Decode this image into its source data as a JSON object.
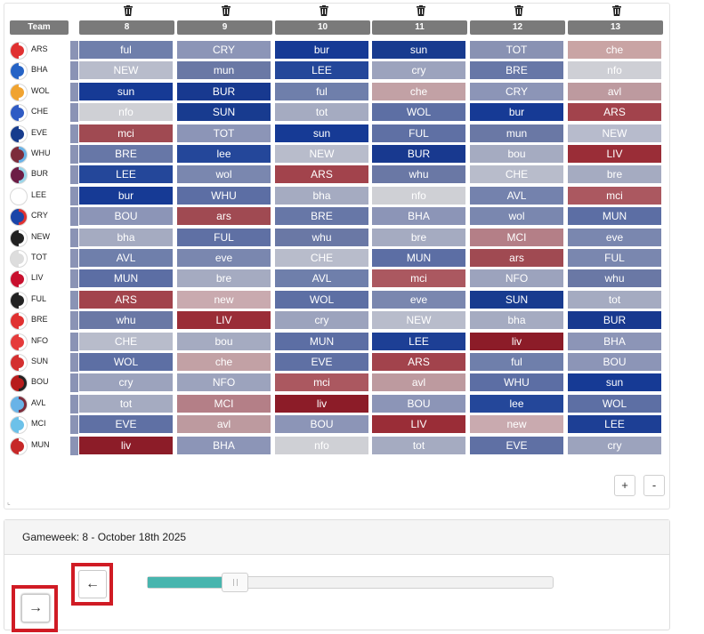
{
  "header": {
    "team_label": "Team",
    "gameweeks": [
      "8",
      "9",
      "10",
      "11",
      "12",
      "13"
    ]
  },
  "teams": [
    {
      "code": "ARS",
      "badge": [
        "#e03131",
        "#ffffff"
      ],
      "fixtures": [
        [
          "ful",
          "#6f7fab"
        ],
        [
          "CRY",
          "#8c95b7"
        ],
        [
          "bur",
          "#163a95"
        ],
        [
          "sun",
          "#183b8f"
        ],
        [
          "TOT",
          "#8992b3"
        ],
        [
          "che",
          "#c9a4a4"
        ]
      ]
    },
    {
      "code": "BHA",
      "badge": [
        "#2563c5",
        "#ffffff"
      ],
      "fixtures": [
        [
          "NEW",
          "#b8bccb"
        ],
        [
          "mun",
          "#6a78a5"
        ],
        [
          "LEE",
          "#24479a"
        ],
        [
          "cry",
          "#9ca3bd"
        ],
        [
          "BRE",
          "#6777a7"
        ],
        [
          "nfo",
          "#cecfd5"
        ]
      ]
    },
    {
      "code": "WOL",
      "badge": [
        "#f0a330",
        "#ffffff"
      ],
      "fixtures": [
        [
          "sun",
          "#163a95"
        ],
        [
          "BUR",
          "#18398f"
        ],
        [
          "ful",
          "#6f7fab"
        ],
        [
          "che",
          "#c2a1a5"
        ],
        [
          "CRY",
          "#8c95b7"
        ],
        [
          "avl",
          "#bd9a9f"
        ]
      ]
    },
    {
      "code": "CHE",
      "badge": [
        "#2f5bc4",
        "#ffffff"
      ],
      "fixtures": [
        [
          "nfo",
          "#cfd0d5"
        ],
        [
          "SUN",
          "#183b8f"
        ],
        [
          "tot",
          "#a5abc1"
        ],
        [
          "WOL",
          "#5d6fa4"
        ],
        [
          "bur",
          "#163a95"
        ],
        [
          "ARS",
          "#a2434c"
        ]
      ]
    },
    {
      "code": "EVE",
      "badge": [
        "#173c8d",
        "#ffffff"
      ],
      "fixtures": [
        [
          "mci",
          "#a04a52"
        ],
        [
          "TOT",
          "#8c95b7"
        ],
        [
          "sun",
          "#163a95"
        ],
        [
          "FUL",
          "#5f70a4"
        ],
        [
          "mun",
          "#6a78a5"
        ],
        [
          "NEW",
          "#b7bbcc"
        ]
      ]
    },
    {
      "code": "WHU",
      "badge": [
        "#7d2c3b",
        "#69b3e7"
      ],
      "fixtures": [
        [
          "BRE",
          "#6777a7"
        ],
        [
          "lee",
          "#24479a"
        ],
        [
          "NEW",
          "#b8bccb"
        ],
        [
          "BUR",
          "#18398f"
        ],
        [
          "bou",
          "#a5abc1"
        ],
        [
          "LIV",
          "#9a2d37"
        ]
      ]
    },
    {
      "code": "BUR",
      "badge": [
        "#6c1d45",
        "#99d6ea"
      ],
      "fixtures": [
        [
          "LEE",
          "#24479a"
        ],
        [
          "wol",
          "#7a87af"
        ],
        [
          "ARS",
          "#a2434c"
        ],
        [
          "whu",
          "#6a78a5"
        ],
        [
          "CHE",
          "#b8bccb"
        ],
        [
          "bre",
          "#a5abc1"
        ]
      ]
    },
    {
      "code": "LEE",
      "badge": [
        "#ffffff",
        "#ffffff"
      ],
      "fixtures": [
        [
          "bur",
          "#163a95"
        ],
        [
          "WHU",
          "#5c6ea4"
        ],
        [
          "bha",
          "#a5abc1"
        ],
        [
          "nfo",
          "#cfd0d5"
        ],
        [
          "AVL",
          "#7482ad"
        ],
        [
          "mci",
          "#ab5860"
        ]
      ]
    },
    {
      "code": "CRY",
      "badge": [
        "#1b45a8",
        "#e03131"
      ],
      "fixtures": [
        [
          "BOU",
          "#8c95b7"
        ],
        [
          "ars",
          "#a04a52"
        ],
        [
          "BRE",
          "#6777a7"
        ],
        [
          "BHA",
          "#8c95b7"
        ],
        [
          "wol",
          "#7a87af"
        ],
        [
          "MUN",
          "#5c6ea4"
        ]
      ]
    },
    {
      "code": "NEW",
      "badge": [
        "#222222",
        "#ffffff"
      ],
      "fixtures": [
        [
          "bha",
          "#a5abc1"
        ],
        [
          "FUL",
          "#5f70a4"
        ],
        [
          "whu",
          "#6a78a5"
        ],
        [
          "bre",
          "#a5abc1"
        ],
        [
          "MCI",
          "#b47f87"
        ],
        [
          "eve",
          "#7a87af"
        ]
      ]
    },
    {
      "code": "TOT",
      "badge": [
        "#dddddd",
        "#ffffff"
      ],
      "fixtures": [
        [
          "AVL",
          "#6f7fab"
        ],
        [
          "eve",
          "#7a87af"
        ],
        [
          "CHE",
          "#b8bccb"
        ],
        [
          "MUN",
          "#5c6ea4"
        ],
        [
          "ars",
          "#a04a52"
        ],
        [
          "FUL",
          "#7a87af"
        ]
      ]
    },
    {
      "code": "LIV",
      "badge": [
        "#c8102e",
        "#ffffff"
      ],
      "fixtures": [
        [
          "MUN",
          "#5c6ea4"
        ],
        [
          "bre",
          "#a5abc1"
        ],
        [
          "AVL",
          "#6f7fab"
        ],
        [
          "mci",
          "#ab5860"
        ],
        [
          "NFO",
          "#9ca3bd"
        ],
        [
          "whu",
          "#6a78a5"
        ]
      ]
    },
    {
      "code": "FUL",
      "badge": [
        "#222222",
        "#ffffff"
      ],
      "fixtures": [
        [
          "ARS",
          "#a2434c"
        ],
        [
          "new",
          "#c9aaaf"
        ],
        [
          "WOL",
          "#5d6fa4"
        ],
        [
          "eve",
          "#7a87af"
        ],
        [
          "SUN",
          "#183b8f"
        ],
        [
          "tot",
          "#a5abc1"
        ]
      ]
    },
    {
      "code": "BRE",
      "badge": [
        "#e03131",
        "#ffffff"
      ],
      "fixtures": [
        [
          "whu",
          "#6a78a5"
        ],
        [
          "LIV",
          "#9a2d37"
        ],
        [
          "cry",
          "#9ca3bd"
        ],
        [
          "NEW",
          "#b8bccb"
        ],
        [
          "bha",
          "#a5abc1"
        ],
        [
          "BUR",
          "#18398f"
        ]
      ]
    },
    {
      "code": "NFO",
      "badge": [
        "#e53b3b",
        "#ffffff"
      ],
      "fixtures": [
        [
          "CHE",
          "#b8bccb"
        ],
        [
          "bou",
          "#a5abc1"
        ],
        [
          "MUN",
          "#5c6ea4"
        ],
        [
          "LEE",
          "#1d3f95"
        ],
        [
          "liv",
          "#8c1c28"
        ],
        [
          "BHA",
          "#8c95b7"
        ]
      ]
    },
    {
      "code": "SUN",
      "badge": [
        "#d32f2f",
        "#ffffff"
      ],
      "fixtures": [
        [
          "WOL",
          "#5d6fa4"
        ],
        [
          "che",
          "#c2a1a5"
        ],
        [
          "EVE",
          "#5f70a4"
        ],
        [
          "ARS",
          "#a2434c"
        ],
        [
          "ful",
          "#6f7fab"
        ],
        [
          "BOU",
          "#8c95b7"
        ]
      ]
    },
    {
      "code": "BOU",
      "badge": [
        "#b71c1c",
        "#222222"
      ],
      "fixtures": [
        [
          "cry",
          "#9ca3bd"
        ],
        [
          "NFO",
          "#9ca3bd"
        ],
        [
          "mci",
          "#ab5860"
        ],
        [
          "avl",
          "#bd9a9f"
        ],
        [
          "WHU",
          "#5c6ea4"
        ],
        [
          "sun",
          "#163a95"
        ]
      ]
    },
    {
      "code": "AVL",
      "badge": [
        "#69b3e7",
        "#7d2c3b"
      ],
      "fixtures": [
        [
          "tot",
          "#a5abc1"
        ],
        [
          "MCI",
          "#b47f87"
        ],
        [
          "liv",
          "#8c1c28"
        ],
        [
          "BOU",
          "#8c95b7"
        ],
        [
          "lee",
          "#24479a"
        ],
        [
          "WOL",
          "#5d6fa4"
        ]
      ]
    },
    {
      "code": "MCI",
      "badge": [
        "#6cc1e9",
        "#ffffff"
      ],
      "fixtures": [
        [
          "EVE",
          "#5f70a4"
        ],
        [
          "avl",
          "#bd9a9f"
        ],
        [
          "BOU",
          "#8c95b7"
        ],
        [
          "LIV",
          "#9a2d37"
        ],
        [
          "new",
          "#c9aaaf"
        ],
        [
          "LEE",
          "#1d3f95"
        ]
      ]
    },
    {
      "code": "MUN",
      "badge": [
        "#c62828",
        "#ffffff"
      ],
      "fixtures": [
        [
          "liv",
          "#8c1c28"
        ],
        [
          "BHA",
          "#8c95b7"
        ],
        [
          "nfo",
          "#cfd0d5"
        ],
        [
          "tot",
          "#a5abc1"
        ],
        [
          "EVE",
          "#5f70a4"
        ],
        [
          "cry",
          "#9ca3bd"
        ]
      ]
    }
  ],
  "controls": {
    "zoom_in": "+",
    "zoom_out": "-"
  },
  "gameweek": {
    "label": "Gameweek: 8 - October 18th 2025",
    "slider_fraction": 0.19
  },
  "nav": {
    "prev_arrow": "←",
    "next_arrow": "→"
  },
  "colors": {
    "header_bg": "#7a7a7a",
    "slider_fill": "#48b5ae",
    "highlight": "#d01b24"
  },
  "icons": {
    "delete_column": "trash-icon",
    "resize": "resize-icon"
  }
}
